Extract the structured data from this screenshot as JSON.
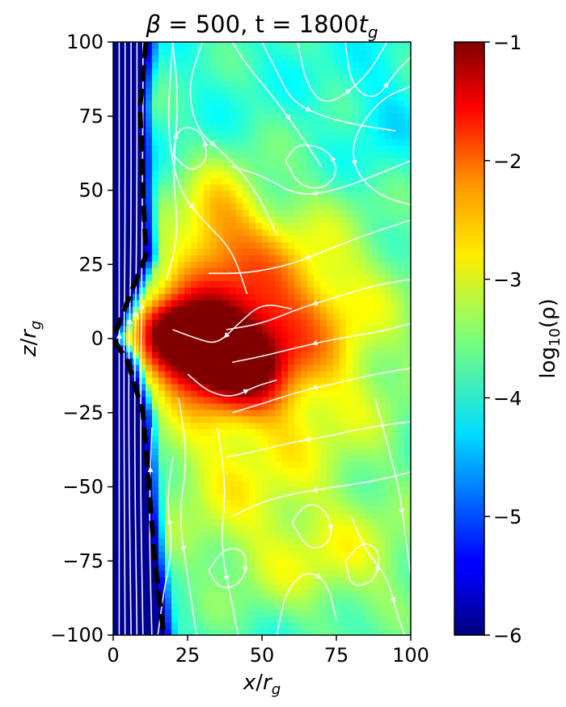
{
  "chart_data": {
    "type": "heatmap",
    "title": "β = 500, t = 1800t_g",
    "title_parts": {
      "beta_symbol": "β",
      "beta_text": " = 500, t = 1800",
      "t_symbol": "t",
      "t_sub": "g"
    },
    "xlabel": {
      "var": "x",
      "sep": "/",
      "unit": "r",
      "sub": "g"
    },
    "ylabel": {
      "var": "z",
      "sep": "/",
      "unit": "r",
      "sub": "g"
    },
    "xlim": [
      0,
      100
    ],
    "ylim": [
      -100,
      100
    ],
    "x_ticks": [
      0,
      25,
      50,
      75,
      100
    ],
    "x_tick_labels": [
      "0",
      "25",
      "50",
      "75",
      "100"
    ],
    "y_ticks": [
      100,
      75,
      50,
      25,
      0,
      -25,
      -50,
      -75,
      -100
    ],
    "y_tick_labels": [
      "100",
      "75",
      "50",
      "25",
      "0",
      "−25",
      "−50",
      "−75",
      "−100"
    ],
    "colorbar": {
      "label_prefix": "log",
      "label_sub": "10",
      "label_arg": "(ρ)",
      "colormap": "jet",
      "range": [
        -6,
        -1
      ],
      "ticks": [
        -1,
        -2,
        -3,
        -4,
        -5,
        -6
      ],
      "tick_labels": [
        "−1",
        "−2",
        "−3",
        "−4",
        "−5",
        "−6"
      ]
    },
    "boundary_curve": {
      "style": "dashed",
      "color": "#000000",
      "points": [
        [
          11,
          100
        ],
        [
          9,
          78
        ],
        [
          10,
          50
        ],
        [
          11,
          28
        ],
        [
          5,
          13
        ],
        [
          0,
          0
        ],
        [
          5,
          -8
        ],
        [
          10,
          -25
        ],
        [
          12,
          -50
        ],
        [
          14,
          -75
        ],
        [
          17,
          -100
        ]
      ]
    },
    "density_features": {
      "background": -3.9,
      "jet_value": -5.9,
      "blobs": [
        {
          "x": 30,
          "z": -3,
          "sx": 11,
          "sz": 10,
          "amp": 2.7
        },
        {
          "x": 45,
          "z": -10,
          "sx": 9,
          "sz": 9,
          "amp": 1.3
        },
        {
          "x": 18,
          "z": 2,
          "sx": 6,
          "sz": 7,
          "amp": 1.4
        },
        {
          "x": 40,
          "z": 8,
          "sx": 20,
          "sz": 18,
          "amp": 1.1
        },
        {
          "x": 35,
          "z": 42,
          "sx": 10,
          "sz": 12,
          "amp": 0.9
        },
        {
          "x": 55,
          "z": 15,
          "sx": 30,
          "sz": 25,
          "amp": 0.8
        },
        {
          "x": 35,
          "z": -45,
          "sx": 18,
          "sz": 25,
          "amp": 0.6
        },
        {
          "x": 65,
          "z": -20,
          "sx": 25,
          "sz": 30,
          "amp": 0.7
        },
        {
          "x": 75,
          "z": -75,
          "sx": 25,
          "sz": 15,
          "amp": 0.7
        },
        {
          "x": 90,
          "z": 75,
          "sx": 8,
          "sz": 15,
          "amp": -0.3
        }
      ]
    },
    "streamlines": [
      {
        "dir": "up",
        "points": [
          [
            2,
            -100
          ],
          [
            2,
            100
          ]
        ]
      },
      {
        "dir": "up",
        "points": [
          [
            4,
            -100
          ],
          [
            3.5,
            -10
          ],
          [
            4,
            30
          ],
          [
            4,
            100
          ]
        ]
      },
      {
        "dir": "up",
        "points": [
          [
            6,
            -100
          ],
          [
            5,
            -15
          ],
          [
            6,
            25
          ],
          [
            6,
            100
          ]
        ]
      },
      {
        "dir": "up",
        "points": [
          [
            8,
            -100
          ],
          [
            7,
            -25
          ],
          [
            8,
            40
          ],
          [
            8,
            100
          ]
        ]
      },
      {
        "dir": "up",
        "points": [
          [
            10,
            -100
          ],
          [
            9,
            -40
          ],
          [
            10,
            60
          ],
          [
            10,
            100
          ]
        ]
      },
      {
        "dir": "up",
        "points": [
          [
            13,
            -100
          ],
          [
            12,
            -60
          ],
          [
            13,
            -30
          ]
        ]
      },
      {
        "dir": "down",
        "points": [
          [
            20,
            100
          ],
          [
            18,
            70
          ],
          [
            22,
            50
          ],
          [
            30,
            40
          ],
          [
            40,
            30
          ],
          [
            45,
            15
          ]
        ]
      },
      {
        "dir": "down",
        "points": [
          [
            30,
            100
          ],
          [
            25,
            85
          ],
          [
            28,
            70
          ],
          [
            38,
            62
          ],
          [
            48,
            50
          ],
          [
            55,
            35
          ]
        ]
      },
      {
        "dir": "up",
        "points": [
          [
            40,
            100
          ],
          [
            45,
            92
          ],
          [
            55,
            80
          ],
          [
            62,
            70
          ],
          [
            70,
            58
          ]
        ]
      },
      {
        "dir": "down",
        "points": [
          [
            50,
            100
          ],
          [
            55,
            90
          ],
          [
            60,
            80
          ],
          [
            70,
            75
          ],
          [
            82,
            72
          ],
          [
            95,
            70
          ]
        ]
      },
      {
        "dir": "up",
        "points": [
          [
            62,
            100
          ],
          [
            65,
            85
          ],
          [
            72,
            78
          ],
          [
            85,
            88
          ],
          [
            92,
            100
          ]
        ]
      },
      {
        "dir": "down",
        "points": [
          [
            78,
            100
          ],
          [
            80,
            85
          ],
          [
            88,
            80
          ],
          [
            95,
            90
          ],
          [
            100,
            95
          ]
        ]
      },
      {
        "dir": "left",
        "points": [
          [
            100,
            60
          ],
          [
            88,
            55
          ],
          [
            75,
            50
          ],
          [
            62,
            48
          ],
          [
            50,
            55
          ],
          [
            40,
            58
          ]
        ]
      },
      {
        "dir": "left",
        "points": [
          [
            100,
            40
          ],
          [
            85,
            35
          ],
          [
            72,
            30
          ],
          [
            60,
            25
          ],
          [
            45,
            22
          ],
          [
            32,
            22
          ]
        ]
      },
      {
        "dir": "left",
        "points": [
          [
            100,
            20
          ],
          [
            88,
            18
          ],
          [
            75,
            14
          ],
          [
            62,
            10
          ],
          [
            50,
            5
          ],
          [
            38,
            3
          ]
        ]
      },
      {
        "dir": "left",
        "points": [
          [
            100,
            5
          ],
          [
            88,
            2
          ],
          [
            75,
            0
          ],
          [
            62,
            -3
          ],
          [
            50,
            -6
          ],
          [
            40,
            -8
          ]
        ]
      },
      {
        "dir": "left",
        "points": [
          [
            100,
            -10
          ],
          [
            88,
            -12
          ],
          [
            75,
            -15
          ],
          [
            62,
            -18
          ],
          [
            50,
            -22
          ],
          [
            40,
            -25
          ]
        ]
      },
      {
        "dir": "left",
        "points": [
          [
            100,
            -28
          ],
          [
            85,
            -30
          ],
          [
            72,
            -33
          ],
          [
            60,
            -35
          ],
          [
            48,
            -38
          ],
          [
            38,
            -40
          ]
        ]
      },
      {
        "dir": "left",
        "points": [
          [
            100,
            -45
          ],
          [
            88,
            -48
          ],
          [
            75,
            -50
          ],
          [
            62,
            -52
          ],
          [
            50,
            -55
          ],
          [
            40,
            -60
          ]
        ]
      },
      {
        "dir": "down",
        "points": [
          [
            22,
            -20
          ],
          [
            25,
            -40
          ],
          [
            22,
            -60
          ],
          [
            25,
            -80
          ],
          [
            28,
            -100
          ]
        ]
      },
      {
        "dir": "down",
        "points": [
          [
            35,
            -30
          ],
          [
            38,
            -50
          ],
          [
            36,
            -70
          ],
          [
            40,
            -90
          ],
          [
            42,
            -100
          ]
        ]
      },
      {
        "dir": "up",
        "points": [
          [
            55,
            -100
          ],
          [
            58,
            -85
          ],
          [
            65,
            -78
          ],
          [
            72,
            -82
          ],
          [
            75,
            -95
          ]
        ]
      },
      {
        "dir": "down",
        "points": [
          [
            80,
            -60
          ],
          [
            85,
            -72
          ],
          [
            92,
            -80
          ],
          [
            96,
            -95
          ],
          [
            98,
            -100
          ]
        ]
      },
      {
        "dir": "up",
        "points": [
          [
            15,
            -100
          ],
          [
            17,
            -85
          ],
          [
            20,
            -70
          ],
          [
            18,
            -55
          ],
          [
            20,
            -40
          ]
        ]
      },
      {
        "dir": "up",
        "points": [
          [
            18,
            20
          ],
          [
            22,
            35
          ],
          [
            20,
            55
          ],
          [
            22,
            80
          ],
          [
            20,
            100
          ]
        ]
      },
      {
        "dir": "left",
        "points": [
          [
            60,
            10
          ],
          [
            50,
            12
          ],
          [
            42,
            5
          ],
          [
            35,
            -2
          ],
          [
            28,
            0
          ],
          [
            20,
            3
          ]
        ]
      },
      {
        "dir": "right",
        "points": [
          [
            25,
            -12
          ],
          [
            32,
            -18
          ],
          [
            40,
            -20
          ],
          [
            48,
            -16
          ],
          [
            55,
            -14
          ]
        ]
      },
      {
        "dir": "up",
        "points": [
          [
            58,
            60
          ],
          [
            62,
            52
          ],
          [
            70,
            50
          ],
          [
            76,
            56
          ],
          [
            72,
            64
          ],
          [
            62,
            66
          ],
          [
            58,
            60
          ]
        ]
      },
      {
        "dir": "down",
        "points": [
          [
            20,
            62
          ],
          [
            26,
            56
          ],
          [
            32,
            60
          ],
          [
            30,
            70
          ],
          [
            22,
            72
          ],
          [
            20,
            62
          ]
        ]
      },
      {
        "dir": "down",
        "points": [
          [
            32,
            -78
          ],
          [
            38,
            -70
          ],
          [
            45,
            -72
          ],
          [
            44,
            -82
          ],
          [
            36,
            -85
          ],
          [
            32,
            -78
          ]
        ]
      },
      {
        "dir": "up",
        "points": [
          [
            78,
            -75
          ],
          [
            84,
            -68
          ],
          [
            90,
            -72
          ],
          [
            88,
            -82
          ],
          [
            80,
            -84
          ],
          [
            78,
            -75
          ]
        ]
      },
      {
        "dir": "left",
        "points": [
          [
            100,
            85
          ],
          [
            92,
            82
          ],
          [
            85,
            75
          ],
          [
            80,
            65
          ],
          [
            82,
            55
          ],
          [
            90,
            48
          ],
          [
            100,
            45
          ]
        ]
      },
      {
        "dir": "down",
        "points": [
          [
            88,
            -20
          ],
          [
            92,
            -35
          ],
          [
            96,
            -50
          ],
          [
            98,
            -65
          ],
          [
            100,
            -80
          ]
        ]
      },
      {
        "dir": "up",
        "points": [
          [
            60,
            -62
          ],
          [
            65,
            -55
          ],
          [
            72,
            -58
          ],
          [
            74,
            -68
          ],
          [
            66,
            -72
          ],
          [
            60,
            -62
          ]
        ]
      }
    ]
  }
}
